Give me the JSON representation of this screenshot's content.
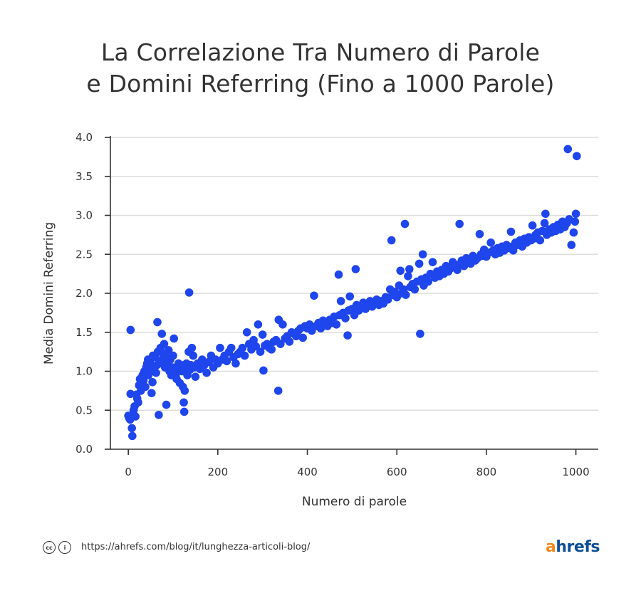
{
  "title": {
    "line1": "La Correlazione Tra Numero di Parole",
    "line2": "e Domini Referring (Fino a 1000 Parole)"
  },
  "footer": {
    "url": "https://ahrefs.com/blog/it/lunghezza-articoli-blog/",
    "logo_a": "a",
    "logo_rest": "hrefs",
    "cc_icons": [
      "cc-icon",
      "by-icon"
    ]
  },
  "colors": {
    "dots": "#1f45ec",
    "grid": "#dcdcdc",
    "axis": "#333333",
    "logo_a": "#f08a1c",
    "logo_rest": "#0e4d96"
  },
  "chart_data": {
    "type": "scatter",
    "title": "La Correlazione Tra Numero di Parole e Domini Referring (Fino a 1000 Parole)",
    "xlabel": "Numero di parole",
    "ylabel": "Media Domini Referring",
    "xlim": [
      -40,
      1050
    ],
    "ylim": [
      0,
      4
    ],
    "xticks": [
      0,
      200,
      400,
      600,
      800,
      1000
    ],
    "yticks": [
      "0.0",
      "0.5",
      "1.0",
      "1.5",
      "2.0",
      "2.5",
      "3.0",
      "3.5",
      "4.0"
    ],
    "grid": "horizontal",
    "points": [
      [
        0,
        0.43
      ],
      [
        2,
        0.4
      ],
      [
        4,
        0.38
      ],
      [
        5,
        0.71
      ],
      [
        5,
        1.53
      ],
      [
        8,
        0.27
      ],
      [
        9,
        0.17
      ],
      [
        10,
        0.45
      ],
      [
        12,
        0.5
      ],
      [
        14,
        0.55
      ],
      [
        16,
        0.42
      ],
      [
        18,
        0.7
      ],
      [
        20,
        0.65
      ],
      [
        22,
        0.6
      ],
      [
        24,
        0.82
      ],
      [
        26,
        0.9
      ],
      [
        28,
        0.75
      ],
      [
        30,
        0.85
      ],
      [
        32,
        0.95
      ],
      [
        34,
        0.88
      ],
      [
        36,
        1.0
      ],
      [
        38,
        0.8
      ],
      [
        40,
        1.05
      ],
      [
        42,
        1.1
      ],
      [
        44,
        1.15
      ],
      [
        45,
        0.95
      ],
      [
        48,
        1.12
      ],
      [
        50,
        1.0
      ],
      [
        52,
        0.72
      ],
      [
        54,
        0.86
      ],
      [
        55,
        1.2
      ],
      [
        58,
        1.05
      ],
      [
        60,
        1.18
      ],
      [
        62,
        0.98
      ],
      [
        64,
        1.08
      ],
      [
        65,
        1.63
      ],
      [
        66,
        1.25
      ],
      [
        68,
        0.44
      ],
      [
        70,
        1.1
      ],
      [
        72,
        1.3
      ],
      [
        75,
        1.48
      ],
      [
        76,
        1.15
      ],
      [
        78,
        1.22
      ],
      [
        80,
        1.35
      ],
      [
        82,
        1.05
      ],
      [
        84,
        1.18
      ],
      [
        85,
        0.57
      ],
      [
        88,
        1.1
      ],
      [
        90,
        1.27
      ],
      [
        92,
        1.0
      ],
      [
        94,
        1.15
      ],
      [
        96,
        0.95
      ],
      [
        98,
        1.05
      ],
      [
        100,
        1.2
      ],
      [
        102,
        1.42
      ],
      [
        104,
        1.0
      ],
      [
        106,
        0.95
      ],
      [
        108,
        0.9
      ],
      [
        110,
        1.05
      ],
      [
        112,
        1.1
      ],
      [
        115,
        0.85
      ],
      [
        118,
        1.08
      ],
      [
        120,
        1.0
      ],
      [
        122,
        0.8
      ],
      [
        124,
        0.6
      ],
      [
        125,
        0.48
      ],
      [
        126,
        0.75
      ],
      [
        128,
        1.05
      ],
      [
        130,
        1.1
      ],
      [
        132,
        0.95
      ],
      [
        135,
        1.25
      ],
      [
        136,
        2.01
      ],
      [
        138,
        1.02
      ],
      [
        140,
        1.08
      ],
      [
        142,
        1.3
      ],
      [
        145,
        1.2
      ],
      [
        148,
        1.05
      ],
      [
        150,
        0.93
      ],
      [
        155,
        1.1
      ],
      [
        160,
        1.03
      ],
      [
        165,
        1.15
      ],
      [
        170,
        1.08
      ],
      [
        175,
        0.98
      ],
      [
        180,
        1.12
      ],
      [
        185,
        1.2
      ],
      [
        190,
        1.05
      ],
      [
        195,
        1.15
      ],
      [
        200,
        1.1
      ],
      [
        205,
        1.3
      ],
      [
        210,
        1.15
      ],
      [
        215,
        1.2
      ],
      [
        220,
        1.13
      ],
      [
        225,
        1.25
      ],
      [
        230,
        1.3
      ],
      [
        235,
        1.18
      ],
      [
        240,
        1.1
      ],
      [
        245,
        1.22
      ],
      [
        250,
        1.25
      ],
      [
        255,
        1.3
      ],
      [
        260,
        1.2
      ],
      [
        265,
        1.5
      ],
      [
        270,
        1.35
      ],
      [
        275,
        1.28
      ],
      [
        280,
        1.4
      ],
      [
        285,
        1.32
      ],
      [
        290,
        1.6
      ],
      [
        295,
        1.25
      ],
      [
        300,
        1.47
      ],
      [
        302,
        1.01
      ],
      [
        305,
        1.33
      ],
      [
        310,
        1.35
      ],
      [
        315,
        1.3
      ],
      [
        320,
        1.28
      ],
      [
        325,
        1.38
      ],
      [
        330,
        1.4
      ],
      [
        335,
        0.75
      ],
      [
        336,
        1.66
      ],
      [
        340,
        1.35
      ],
      [
        345,
        1.6
      ],
      [
        350,
        1.42
      ],
      [
        355,
        1.45
      ],
      [
        360,
        1.38
      ],
      [
        365,
        1.5
      ],
      [
        370,
        1.48
      ],
      [
        375,
        1.45
      ],
      [
        380,
        1.52
      ],
      [
        385,
        1.55
      ],
      [
        390,
        1.43
      ],
      [
        395,
        1.58
      ],
      [
        400,
        1.55
      ],
      [
        405,
        1.6
      ],
      [
        410,
        1.52
      ],
      [
        415,
        1.97
      ],
      [
        420,
        1.58
      ],
      [
        425,
        1.62
      ],
      [
        430,
        1.55
      ],
      [
        435,
        1.65
      ],
      [
        440,
        1.6
      ],
      [
        445,
        1.58
      ],
      [
        450,
        1.66
      ],
      [
        455,
        1.62
      ],
      [
        460,
        1.7
      ],
      [
        465,
        1.6
      ],
      [
        470,
        2.24
      ],
      [
        472,
        1.72
      ],
      [
        475,
        1.9
      ],
      [
        480,
        1.75
      ],
      [
        485,
        1.68
      ],
      [
        490,
        1.46
      ],
      [
        492,
        1.78
      ],
      [
        495,
        1.96
      ],
      [
        500,
        1.8
      ],
      [
        505,
        1.72
      ],
      [
        508,
        2.31
      ],
      [
        510,
        1.85
      ],
      [
        515,
        1.78
      ],
      [
        520,
        1.82
      ],
      [
        525,
        1.88
      ],
      [
        530,
        1.8
      ],
      [
        535,
        1.85
      ],
      [
        540,
        1.9
      ],
      [
        545,
        1.83
      ],
      [
        550,
        1.88
      ],
      [
        555,
        1.92
      ],
      [
        560,
        1.85
      ],
      [
        565,
        1.9
      ],
      [
        570,
        1.87
      ],
      [
        575,
        1.95
      ],
      [
        580,
        1.92
      ],
      [
        585,
        2.05
      ],
      [
        588,
        2.68
      ],
      [
        590,
        1.98
      ],
      [
        595,
        2.02
      ],
      [
        600,
        1.95
      ],
      [
        605,
        2.1
      ],
      [
        608,
        2.29
      ],
      [
        610,
        2.0
      ],
      [
        615,
        2.05
      ],
      [
        618,
        2.89
      ],
      [
        620,
        1.98
      ],
      [
        625,
        2.22
      ],
      [
        628,
        2.31
      ],
      [
        630,
        2.08
      ],
      [
        635,
        2.12
      ],
      [
        640,
        2.05
      ],
      [
        645,
        2.15
      ],
      [
        650,
        2.38
      ],
      [
        652,
        1.48
      ],
      [
        655,
        2.18
      ],
      [
        658,
        2.5
      ],
      [
        660,
        2.1
      ],
      [
        665,
        2.2
      ],
      [
        670,
        2.15
      ],
      [
        675,
        2.25
      ],
      [
        680,
        2.4
      ],
      [
        685,
        2.2
      ],
      [
        690,
        2.28
      ],
      [
        695,
        2.22
      ],
      [
        700,
        2.3
      ],
      [
        705,
        2.25
      ],
      [
        710,
        2.35
      ],
      [
        715,
        2.28
      ],
      [
        720,
        2.32
      ],
      [
        725,
        2.4
      ],
      [
        730,
        2.35
      ],
      [
        735,
        2.3
      ],
      [
        740,
        2.89
      ],
      [
        742,
        2.38
      ],
      [
        745,
        2.42
      ],
      [
        750,
        2.35
      ],
      [
        755,
        2.45
      ],
      [
        760,
        2.4
      ],
      [
        765,
        2.38
      ],
      [
        770,
        2.48
      ],
      [
        775,
        2.42
      ],
      [
        780,
        2.45
      ],
      [
        785,
        2.76
      ],
      [
        788,
        2.5
      ],
      [
        790,
        2.48
      ],
      [
        795,
        2.56
      ],
      [
        800,
        2.47
      ],
      [
        805,
        2.52
      ],
      [
        810,
        2.65
      ],
      [
        815,
        2.55
      ],
      [
        820,
        2.5
      ],
      [
        825,
        2.58
      ],
      [
        830,
        2.52
      ],
      [
        835,
        2.6
      ],
      [
        840,
        2.55
      ],
      [
        845,
        2.62
      ],
      [
        850,
        2.58
      ],
      [
        855,
        2.79
      ],
      [
        858,
        2.6
      ],
      [
        860,
        2.55
      ],
      [
        865,
        2.65
      ],
      [
        870,
        2.62
      ],
      [
        875,
        2.68
      ],
      [
        880,
        2.6
      ],
      [
        885,
        2.7
      ],
      [
        890,
        2.65
      ],
      [
        895,
        2.72
      ],
      [
        900,
        2.68
      ],
      [
        903,
        2.87
      ],
      [
        905,
        2.7
      ],
      [
        910,
        2.75
      ],
      [
        915,
        2.78
      ],
      [
        920,
        2.68
      ],
      [
        925,
        2.8
      ],
      [
        930,
        2.9
      ],
      [
        932,
        3.02
      ],
      [
        935,
        2.75
      ],
      [
        940,
        2.82
      ],
      [
        945,
        2.78
      ],
      [
        950,
        2.85
      ],
      [
        955,
        2.8
      ],
      [
        960,
        2.88
      ],
      [
        965,
        2.82
      ],
      [
        970,
        2.92
      ],
      [
        975,
        2.85
      ],
      [
        980,
        2.9
      ],
      [
        982,
        3.85
      ],
      [
        985,
        2.95
      ],
      [
        990,
        2.62
      ],
      [
        995,
        2.78
      ],
      [
        998,
        2.92
      ],
      [
        1000,
        3.02
      ],
      [
        1002,
        3.76
      ]
    ]
  }
}
